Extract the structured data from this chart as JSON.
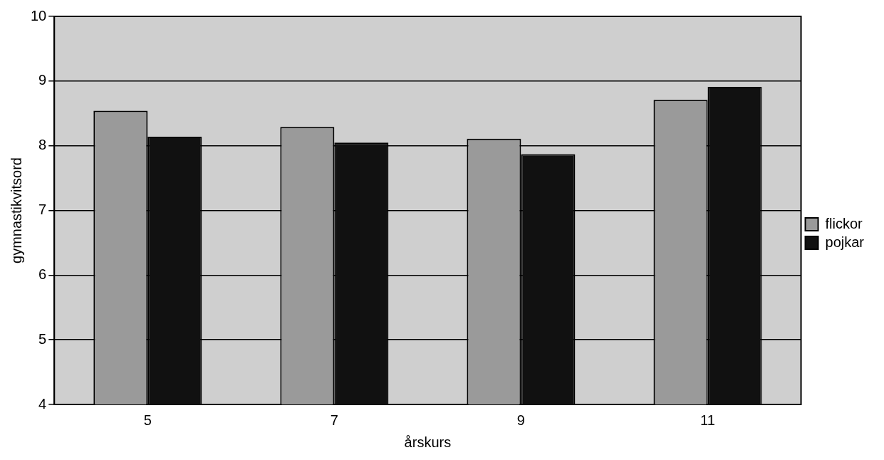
{
  "chart_data": {
    "type": "bar",
    "xlabel": "årskurs",
    "ylabel": "gymnastikvitsord",
    "categories": [
      "5",
      "7",
      "9",
      "11"
    ],
    "series": [
      {
        "name": "flickor",
        "color": "#9a9a9a",
        "values": [
          8.54,
          8.29,
          8.11,
          8.71
        ]
      },
      {
        "name": "pojkar",
        "color": "#111111",
        "values": [
          8.14,
          8.05,
          7.87,
          8.91
        ]
      }
    ],
    "ylim": [
      4,
      10
    ],
    "yticks": [
      4,
      5,
      6,
      7,
      8,
      9,
      10
    ],
    "grid": "y",
    "legend": "right"
  }
}
